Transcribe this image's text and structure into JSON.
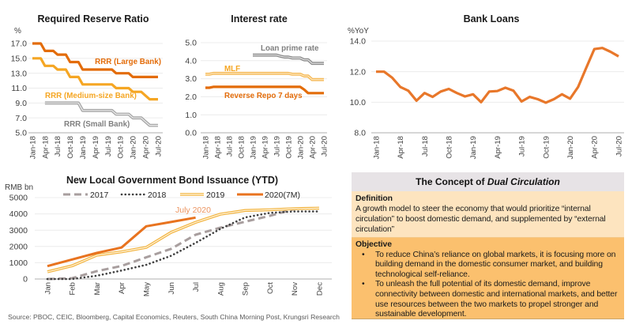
{
  "chart_data": [
    {
      "type": "line",
      "title": "Required Reserve Ratio",
      "ylabel": "%",
      "xlabel": "",
      "ylim": [
        5,
        17
      ],
      "yticks": [
        5,
        7,
        9,
        11,
        13,
        15,
        17
      ],
      "ytick_labels": [
        "5.0",
        "7.0",
        "9.0",
        "11.0",
        "13.0",
        "15.0",
        "17.0"
      ],
      "grid": true,
      "x": [
        "Jan-18",
        "Feb-18",
        "Mar-18",
        "Apr-18",
        "May-18",
        "Jun-18",
        "Jul-18",
        "Aug-18",
        "Sep-18",
        "Oct-18",
        "Nov-18",
        "Dec-18",
        "Jan-19",
        "Feb-19",
        "Mar-19",
        "Apr-19",
        "May-19",
        "Jun-19",
        "Jul-19",
        "Aug-19",
        "Sep-19",
        "Oct-19",
        "Nov-19",
        "Dec-19",
        "Jan-20",
        "Feb-20",
        "Mar-20",
        "Apr-20",
        "May-20",
        "Jun-20",
        "Jul-20"
      ],
      "xtick_labels": [
        "Jan-18",
        "Apr-18",
        "Jul-18",
        "Oct-18",
        "Jan-19",
        "Apr-19",
        "Jul-19",
        "Oct-19",
        "Jan-20",
        "Apr-20",
        "Jul-20"
      ],
      "series": [
        {
          "name": "RRR (Large Bank)",
          "style": "solid",
          "color": "#E36C0A",
          "values": [
            17,
            17,
            17,
            16,
            16,
            16,
            15.5,
            15.5,
            15.5,
            14.5,
            14.5,
            14.5,
            13.5,
            13.5,
            13.5,
            13.5,
            13.5,
            13.5,
            13.5,
            13.5,
            13,
            13,
            13,
            13,
            12.5,
            12.5,
            12.5,
            12.5,
            12.5,
            12.5,
            12.5
          ]
        },
        {
          "name": "RRR (Medium-size Bank)",
          "style": "solid",
          "color": "#F5A623",
          "values": [
            15,
            15,
            15,
            14,
            14,
            14,
            13.5,
            13.5,
            13.5,
            12.5,
            12.5,
            12.5,
            11.5,
            11.5,
            11.5,
            11.5,
            11.5,
            11.5,
            11.5,
            11.5,
            11,
            11,
            11,
            11,
            10.5,
            10.5,
            10.5,
            10,
            9.5,
            9.5,
            9.5
          ]
        },
        {
          "name": "RRR (Small Bank)",
          "style": "double",
          "color": "#A5A5A5",
          "inner_color": "#EEEEEE",
          "values": [
            null,
            null,
            null,
            9,
            9,
            9,
            9,
            9,
            9,
            9,
            9,
            9,
            8,
            8,
            8,
            8,
            8,
            8,
            8,
            8,
            7.5,
            7.5,
            7.5,
            7.5,
            7,
            7,
            7,
            6.5,
            6,
            6,
            6
          ]
        }
      ]
    },
    {
      "type": "line",
      "title": "Interest rate",
      "ylabel": "",
      "xlabel": "",
      "ylim": [
        0,
        5
      ],
      "yticks": [
        0,
        1,
        2,
        3,
        4,
        5
      ],
      "ytick_labels": [
        "0.0",
        "1.0",
        "2.0",
        "3.0",
        "4.0",
        "5.0"
      ],
      "grid": true,
      "x": [
        "Jan-18",
        "Feb-18",
        "Mar-18",
        "Apr-18",
        "May-18",
        "Jun-18",
        "Jul-18",
        "Aug-18",
        "Sep-18",
        "Oct-18",
        "Nov-18",
        "Dec-18",
        "Jan-19",
        "Feb-19",
        "Mar-19",
        "Apr-19",
        "May-19",
        "Jun-19",
        "Jul-19",
        "Aug-19",
        "Sep-19",
        "Oct-19",
        "Nov-19",
        "Dec-19",
        "Jan-20",
        "Feb-20",
        "Mar-20",
        "Apr-20",
        "May-20",
        "Jun-20",
        "Jul-20"
      ],
      "xtick_labels": [
        "Jan-18",
        "Apr-18",
        "Jul-18",
        "Oct-18",
        "Jan-19",
        "Apr-19",
        "Jul-19",
        "Oct-19",
        "Jan-20",
        "Apr-20",
        "Jul-20"
      ],
      "series": [
        {
          "name": "Loan prime rate",
          "style": "double",
          "color": "#8C8C8C",
          "inner_color": "#E6E6E6",
          "values": [
            null,
            null,
            null,
            null,
            null,
            null,
            null,
            null,
            null,
            null,
            null,
            null,
            4.31,
            4.31,
            4.31,
            4.31,
            4.31,
            4.31,
            4.31,
            4.25,
            4.2,
            4.2,
            4.15,
            4.15,
            4.15,
            4.05,
            4.05,
            3.85,
            3.85,
            3.85,
            3.85
          ]
        },
        {
          "name": "MLF",
          "style": "double",
          "color": "#F5B956",
          "inner_color": "#FDE9C4",
          "values": [
            3.25,
            3.25,
            3.3,
            3.3,
            3.3,
            3.3,
            3.3,
            3.3,
            3.3,
            3.3,
            3.3,
            3.3,
            3.3,
            3.3,
            3.3,
            3.3,
            3.3,
            3.3,
            3.3,
            3.3,
            3.3,
            3.3,
            3.25,
            3.25,
            3.25,
            3.15,
            3.15,
            2.95,
            2.95,
            2.95,
            2.95
          ]
        },
        {
          "name": "Reverse Repo 7 days",
          "style": "solid",
          "color": "#E36C0A",
          "values": [
            2.5,
            2.5,
            2.55,
            2.55,
            2.55,
            2.55,
            2.55,
            2.55,
            2.55,
            2.55,
            2.55,
            2.55,
            2.55,
            2.55,
            2.55,
            2.55,
            2.55,
            2.55,
            2.55,
            2.55,
            2.55,
            2.55,
            2.55,
            2.55,
            2.55,
            2.4,
            2.2,
            2.2,
            2.2,
            2.2,
            2.2
          ]
        }
      ]
    },
    {
      "type": "line",
      "title": "Bank Loans",
      "ylabel": "%YoY",
      "xlabel": "",
      "ylim": [
        8,
        14
      ],
      "yticks": [
        8,
        10,
        12,
        14
      ],
      "ytick_labels": [
        "8.0",
        "10.0",
        "12.0",
        "14.0"
      ],
      "grid": true,
      "x": [
        "Jan-18",
        "Feb-18",
        "Mar-18",
        "Apr-18",
        "May-18",
        "Jun-18",
        "Jul-18",
        "Aug-18",
        "Sep-18",
        "Oct-18",
        "Nov-18",
        "Dec-18",
        "Jan-19",
        "Feb-19",
        "Mar-19",
        "Apr-19",
        "May-19",
        "Jun-19",
        "Jul-19",
        "Aug-19",
        "Sep-19",
        "Oct-19",
        "Nov-19",
        "Dec-19",
        "Jan-20",
        "Feb-20",
        "Mar-20",
        "Apr-20",
        "May-20",
        "Jun-20",
        "Jul-20"
      ],
      "xtick_labels": [
        "Jan-18",
        "Apr-18",
        "Jul-18",
        "Oct-18",
        "Jan-19",
        "Apr-19",
        "Jul-19",
        "Oct-19",
        "Jan-20",
        "Apr-20",
        "Jul-20"
      ],
      "series": [
        {
          "name": "Bank Loans",
          "style": "solid",
          "color": "#E8772A",
          "values": [
            12.0,
            12.0,
            11.6,
            11.0,
            10.75,
            10.1,
            10.6,
            10.35,
            10.7,
            10.87,
            10.6,
            10.38,
            10.52,
            10.0,
            10.7,
            10.73,
            10.95,
            10.75,
            10.05,
            10.35,
            10.2,
            9.97,
            10.2,
            10.52,
            10.23,
            11.0,
            12.25,
            13.48,
            13.55,
            13.3,
            13.0
          ]
        }
      ]
    },
    {
      "type": "line",
      "title": "New Local Government Bond Issuance (YTD)",
      "ylabel": "RMB bn",
      "xlabel": "",
      "ylim": [
        0,
        5000
      ],
      "yticks": [
        0,
        1000,
        2000,
        3000,
        4000,
        5000
      ],
      "ytick_labels": [
        "0",
        "1000",
        "2000",
        "3000",
        "4000",
        "5000"
      ],
      "grid": true,
      "legend": "top",
      "annotation": "July 2020",
      "x": [
        "Jan",
        "Feb",
        "Mar",
        "Apr",
        "May",
        "Jun",
        "Jul",
        "Aug",
        "Sep",
        "Oct",
        "Nov",
        "Dec"
      ],
      "xtick_labels": [
        "Jan",
        "Feb",
        "Mar",
        "Apr",
        "May",
        "Jun",
        "Jul",
        "Aug",
        "Sep",
        "Oct",
        "Nov",
        "Dec"
      ],
      "series": [
        {
          "name": "2017",
          "style": "dashed",
          "color": "#A89E9E",
          "values": [
            0,
            50,
            480,
            800,
            1330,
            1850,
            2720,
            3150,
            3520,
            3880,
            4300,
            4350
          ]
        },
        {
          "name": "2018",
          "style": "dotted",
          "color": "#3F3F3F",
          "values": [
            0,
            0,
            200,
            520,
            870,
            1420,
            2220,
            3080,
            3780,
            4060,
            4150,
            4150
          ]
        },
        {
          "name": "2019",
          "style": "double",
          "color": "#F2B33D",
          "inner_color": "#FFF6E3",
          "values": [
            440,
            810,
            1460,
            1670,
            1940,
            2860,
            3480,
            3980,
            4210,
            4250,
            4320,
            4350
          ]
        },
        {
          "name": "2020(7M)",
          "style": "solid",
          "color": "#E8731F",
          "values": [
            790,
            1200,
            1600,
            1930,
            3240,
            3500,
            3770,
            null,
            null,
            null,
            null,
            null
          ]
        }
      ]
    }
  ],
  "concept": {
    "title_prefix": "The Concept of ",
    "title_emphasis": "Dual Circulation",
    "definition": {
      "heading": "Definition",
      "text": "A growth model to steer the economy that would prioritize “internal circulation” to boost domestic demand, and supplemented by “external circulation”"
    },
    "objective": {
      "heading": "Objective",
      "bullet_symbol": "•",
      "bullets": [
        "To reduce China’s reliance on global markets, it is focusing more on building demand in the domestic consumer market, and building technological self-reliance.",
        "To unleash the full potential of its domestic demand, improve connectivity between domestic and international markets, and better use resources between the two markets to propel stronger and sustainable development."
      ]
    }
  },
  "source": "Source: PBOC, CEIC, Bloomberg, Capital Economics, Reuters, South China Morning Post, Krungsri Research"
}
